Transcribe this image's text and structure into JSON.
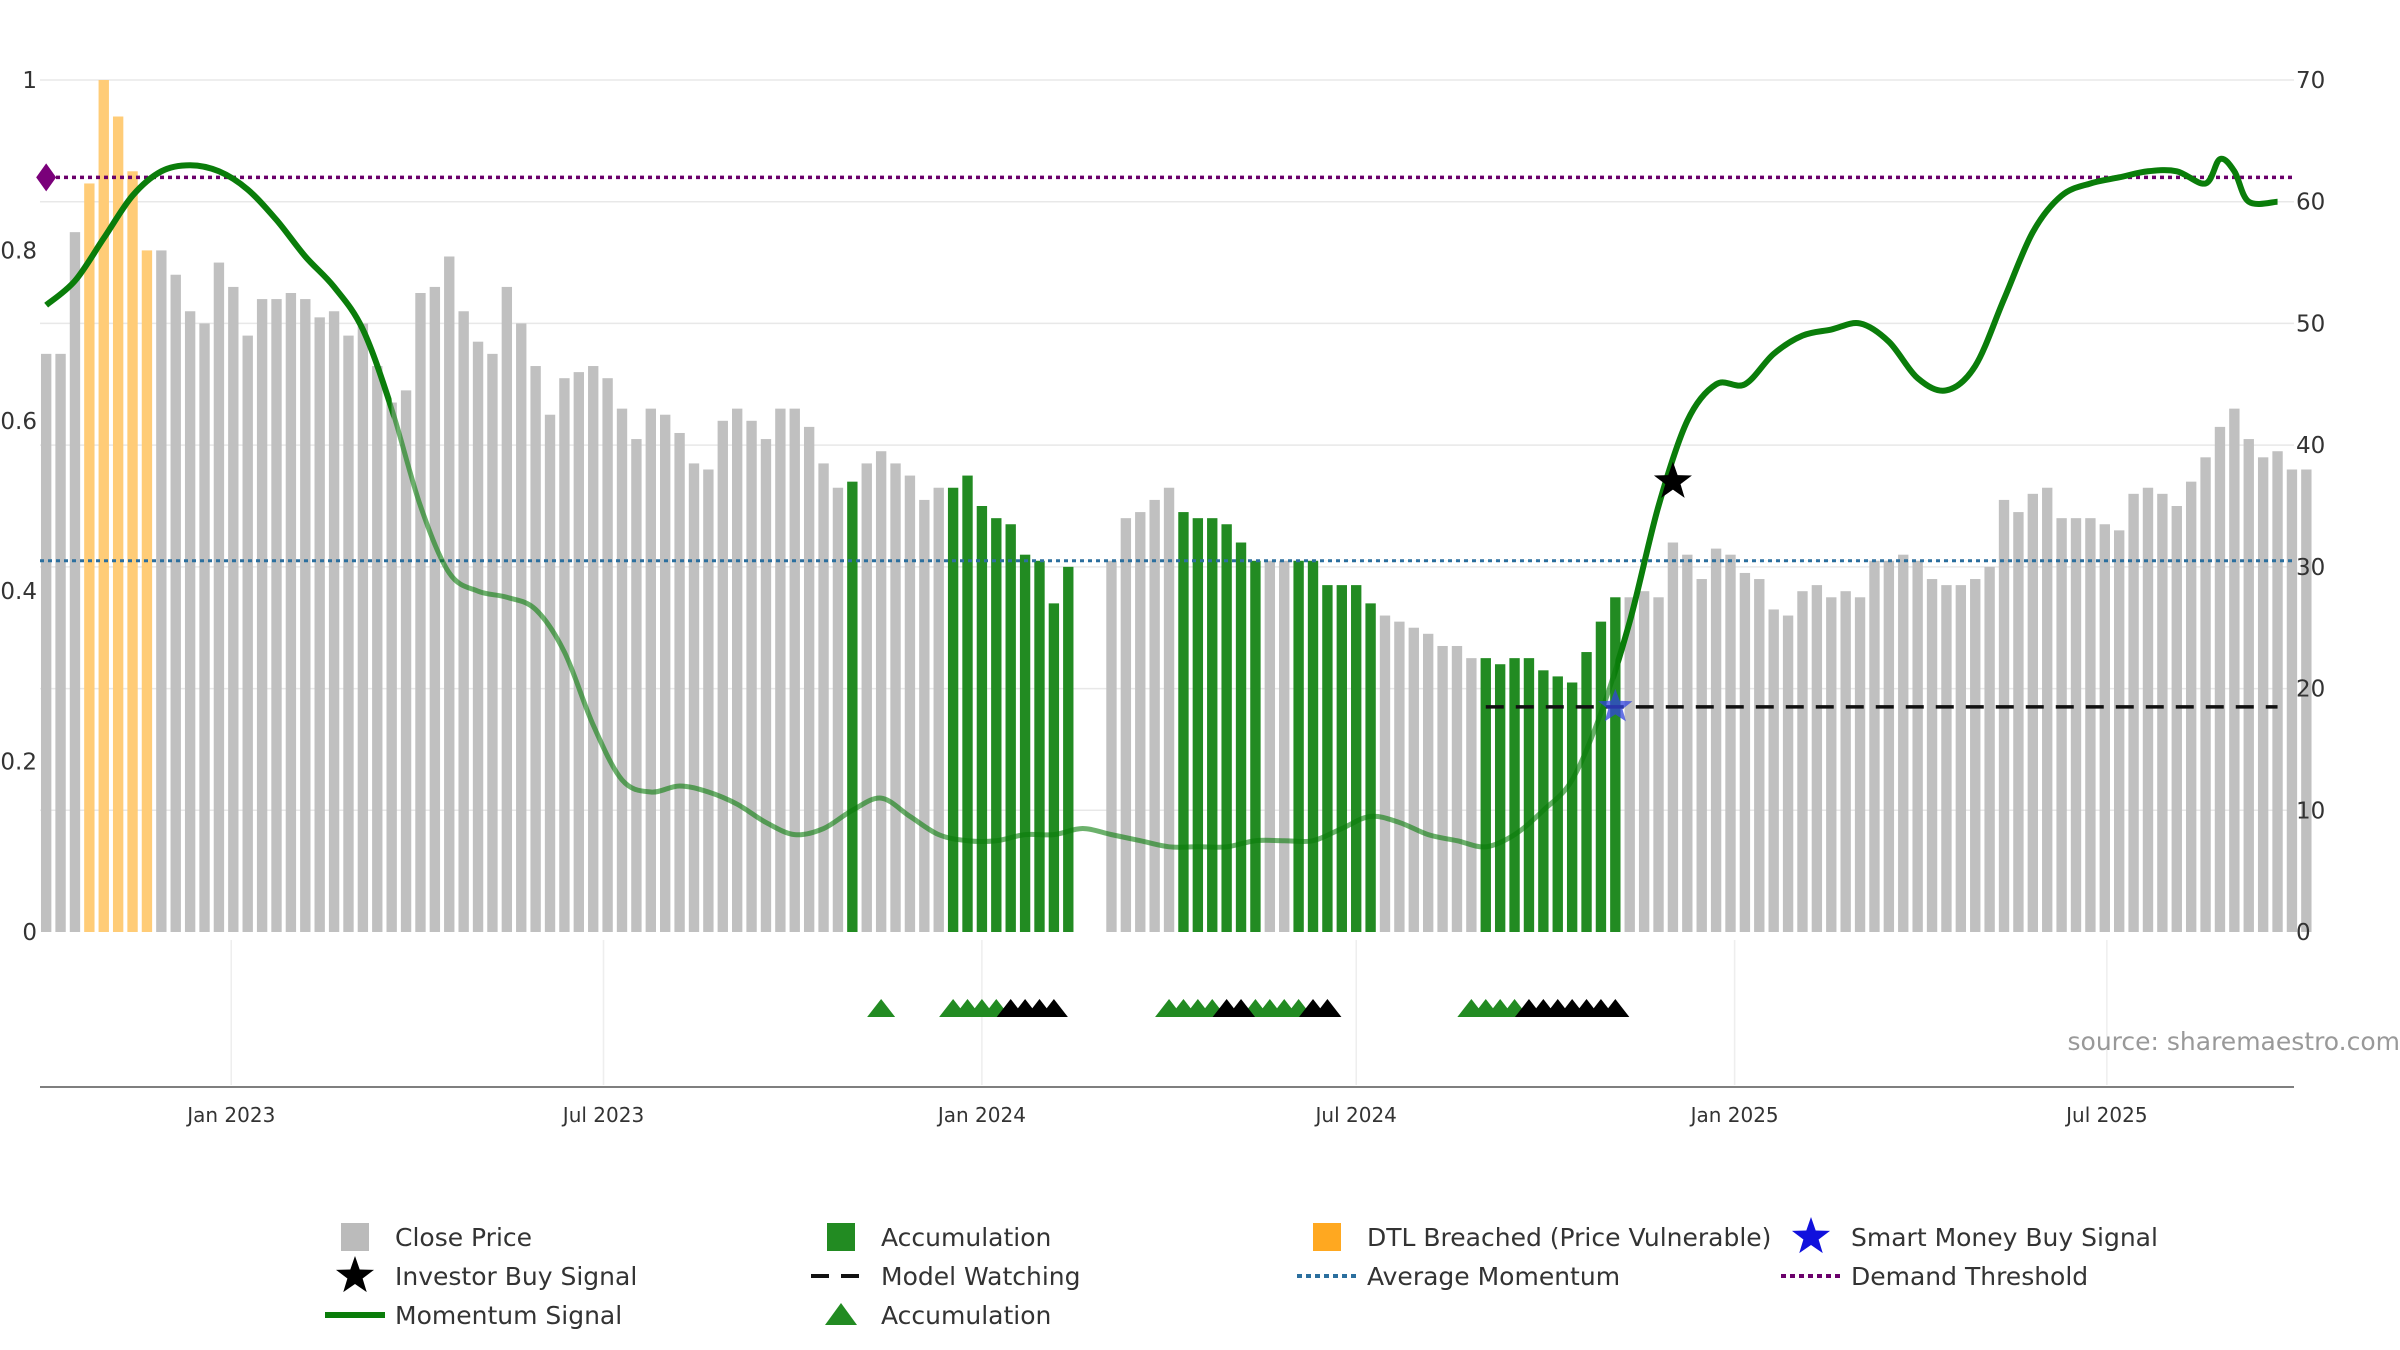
{
  "chart_data": {
    "type": "bar",
    "title": "",
    "source": "source: sharemaestro.com",
    "x_axis": {
      "range": [
        "2022-09-30",
        "2025-09-30"
      ],
      "ticks": [
        {
          "date": "2023-01-01",
          "label": "Jan 2023"
        },
        {
          "date": "2023-07-01",
          "label": "Jul 2023"
        },
        {
          "date": "2024-01-01",
          "label": "Jan 2024"
        },
        {
          "date": "2024-07-01",
          "label": "Jul 2024"
        },
        {
          "date": "2025-01-01",
          "label": "Jan 2025"
        },
        {
          "date": "2025-07-01",
          "label": "Jul 2025"
        }
      ]
    },
    "y_left": {
      "range": [
        0,
        1
      ],
      "ticks": [
        {
          "v": 0,
          "label": "0"
        },
        {
          "v": 0.2,
          "label": "0.2"
        },
        {
          "v": 0.4,
          "label": "0.4"
        },
        {
          "v": 0.6,
          "label": "0.6"
        },
        {
          "v": 0.8,
          "label": "0.8"
        },
        {
          "v": 1,
          "label": "1"
        }
      ]
    },
    "y_right": {
      "range": [
        0,
        70
      ],
      "ticks": [
        {
          "v": 0,
          "label": "0"
        },
        {
          "v": 10,
          "label": "10"
        },
        {
          "v": 20,
          "label": "20"
        },
        {
          "v": 30,
          "label": "30"
        },
        {
          "v": 40,
          "label": "40"
        },
        {
          "v": 50,
          "label": "50"
        },
        {
          "v": 60,
          "label": "60"
        },
        {
          "v": 70,
          "label": "70"
        }
      ]
    },
    "grid": true,
    "colors": {
      "close_price": "#c0c0c0",
      "accumulation": "#228b22",
      "dtl_breached": "#ffcc77",
      "momentum": "#0a7d0a",
      "average_momentum": "#2b6f9e",
      "demand_threshold": "#6b006b",
      "model_watching": "#111111",
      "smart_money": "#3344dd",
      "investor_buy": "#000000"
    },
    "close_price_bars": {
      "start_date": "2022-10-03",
      "interval_days": 7,
      "values": [
        47.5,
        47.5,
        57.5,
        61.5,
        70.0,
        67.0,
        62.5,
        56.0,
        56.0,
        54.0,
        51.0,
        50.0,
        55.0,
        53.0,
        49.0,
        52.0,
        52.0,
        52.5,
        52.0,
        50.5,
        51.0,
        49.0,
        50.0,
        46.5,
        43.5,
        44.5,
        52.5,
        53.0,
        55.5,
        51.0,
        48.5,
        47.5,
        53.0,
        50.0,
        46.5,
        42.5,
        45.5,
        46.0,
        46.5,
        45.5,
        43.0,
        40.5,
        43.0,
        42.5,
        41.0,
        38.5,
        38.0,
        42.0,
        43.0,
        42.0,
        40.5,
        43.0,
        43.0,
        41.5,
        38.5,
        36.5,
        37.0,
        38.5,
        39.5,
        38.5,
        37.5,
        35.5,
        36.5,
        36.5,
        37.5,
        35.0,
        34.0,
        33.5,
        31.0,
        30.5,
        27.0,
        30.0,
        32.5,
        31.0,
        30.5,
        34.0,
        34.5,
        35.5,
        36.5,
        34.5,
        34.0,
        34.0,
        33.5,
        32.0,
        30.5,
        30.5,
        30.5,
        30.5,
        30.5,
        28.5,
        28.5,
        28.5,
        27.0,
        26.0,
        25.5,
        25.0,
        24.5,
        23.5,
        23.5,
        22.5,
        22.5,
        22.0,
        22.5,
        22.5,
        21.5,
        21.0,
        20.5,
        23.0,
        25.5,
        27.5,
        27.5,
        28.0,
        27.5,
        32.0,
        31.0,
        29.0,
        31.5,
        31.0,
        29.5,
        29.0,
        26.5,
        26.0,
        28.0,
        28.5,
        27.5,
        28.0,
        27.5,
        30.5,
        30.5,
        31.0,
        30.5,
        29.0,
        28.5,
        28.5,
        29.0,
        30.0,
        35.5,
        34.5,
        36.0,
        36.5,
        34.0,
        34.0,
        34.0,
        33.5,
        33.0,
        36.0,
        36.5,
        36.0,
        35.0,
        37.0,
        39.0,
        41.5,
        43.0,
        40.5,
        39.0,
        39.5,
        38.0,
        38.0
      ],
      "accumulation_ranges": [
        [
          56,
          56
        ],
        [
          63,
          71
        ],
        [
          79,
          84
        ],
        [
          87,
          92
        ],
        [
          100,
          109
        ]
      ],
      "dtl_breached_range": [
        3,
        7
      ],
      "gap_ranges": [
        [
          72,
          73
        ]
      ]
    },
    "momentum_signal": {
      "note": "",
      "points": [
        [
          "2022-10-03",
          51.5
        ],
        [
          "2022-10-17",
          53.5
        ],
        [
          "2022-10-31",
          57.0
        ],
        [
          "2022-11-14",
          60.5
        ],
        [
          "2022-11-28",
          62.5
        ],
        [
          "2022-12-12",
          63.0
        ],
        [
          "2022-12-26",
          62.5
        ],
        [
          "2023-01-09",
          61.0
        ],
        [
          "2023-01-23",
          58.5
        ],
        [
          "2023-02-06",
          55.5
        ],
        [
          "2023-02-20",
          53.0
        ],
        [
          "2023-03-06",
          49.5
        ],
        [
          "2023-03-20",
          43.0
        ],
        [
          "2023-04-03",
          35.0
        ],
        [
          "2023-04-17",
          29.5
        ],
        [
          "2023-05-01",
          28.0
        ],
        [
          "2023-05-15",
          27.5
        ],
        [
          "2023-05-29",
          26.5
        ],
        [
          "2023-06-12",
          23.0
        ],
        [
          "2023-06-26",
          17.0
        ],
        [
          "2023-07-10",
          12.5
        ],
        [
          "2023-07-24",
          11.5
        ],
        [
          "2023-08-07",
          12.0
        ],
        [
          "2023-08-21",
          11.5
        ],
        [
          "2023-09-04",
          10.5
        ],
        [
          "2023-09-18",
          9.0
        ],
        [
          "2023-10-02",
          8.0
        ],
        [
          "2023-10-16",
          8.5
        ],
        [
          "2023-10-30",
          10.0
        ],
        [
          "2023-11-13",
          11.0
        ],
        [
          "2023-11-27",
          9.5
        ],
        [
          "2023-12-11",
          8.0
        ],
        [
          "2023-12-25",
          7.5
        ],
        [
          "2024-01-08",
          7.5
        ],
        [
          "2024-01-22",
          8.0
        ],
        [
          "2024-02-05",
          8.0
        ],
        [
          "2024-02-19",
          8.5
        ],
        [
          "2024-03-04",
          8.0
        ],
        [
          "2024-03-18",
          7.5
        ],
        [
          "2024-04-01",
          7.0
        ],
        [
          "2024-04-15",
          7.0
        ],
        [
          "2024-04-29",
          7.0
        ],
        [
          "2024-05-13",
          7.5
        ],
        [
          "2024-05-27",
          7.5
        ],
        [
          "2024-06-10",
          7.5
        ],
        [
          "2024-06-24",
          8.5
        ],
        [
          "2024-07-08",
          9.5
        ],
        [
          "2024-07-22",
          9.0
        ],
        [
          "2024-08-05",
          8.0
        ],
        [
          "2024-08-19",
          7.5
        ],
        [
          "2024-09-02",
          7.0
        ],
        [
          "2024-09-16",
          8.0
        ],
        [
          "2024-09-30",
          10.0
        ],
        [
          "2024-10-14",
          12.5
        ],
        [
          "2024-10-28",
          18.0
        ],
        [
          "2024-11-11",
          25.5
        ],
        [
          "2024-11-25",
          35.0
        ],
        [
          "2024-12-09",
          42.0
        ],
        [
          "2024-12-23",
          45.0
        ],
        [
          "2025-01-06",
          45.0
        ],
        [
          "2025-01-20",
          47.5
        ],
        [
          "2025-02-03",
          49.0
        ],
        [
          "2025-02-17",
          49.5
        ],
        [
          "2025-03-03",
          50.0
        ],
        [
          "2025-03-17",
          48.5
        ],
        [
          "2025-03-31",
          45.5
        ],
        [
          "2025-04-14",
          44.5
        ],
        [
          "2025-04-28",
          46.5
        ],
        [
          "2025-05-12",
          52.0
        ],
        [
          "2025-05-26",
          57.5
        ],
        [
          "2025-06-09",
          60.5
        ],
        [
          "2025-06-23",
          61.5
        ],
        [
          "2025-07-07",
          62.0
        ],
        [
          "2025-07-21",
          62.5
        ],
        [
          "2025-08-04",
          62.5
        ],
        [
          "2025-08-18",
          61.5
        ],
        [
          "2025-08-25",
          63.5
        ],
        [
          "2025-09-01",
          62.5
        ],
        [
          "2025-09-08",
          60.0
        ],
        [
          "2025-09-22",
          60.0
        ]
      ],
      "faded_range": [
        "2023-03-20",
        "2024-11-04"
      ]
    },
    "average_momentum": 30.5,
    "demand_threshold": 62.0,
    "demand_marker_date": "2022-10-03",
    "model_watching": {
      "level": 18.5,
      "start": "2024-09-02",
      "end": "2025-09-22"
    },
    "smart_money_signal": {
      "date": "2024-11-04",
      "value": 18.5
    },
    "investor_buy_signal": {
      "date": "2024-12-02",
      "value": 37.0
    },
    "accumulation_markers": {
      "green": [
        "2023-11-13",
        "2023-12-18",
        "2023-12-25",
        "2024-01-01",
        "2024-01-08",
        "2024-04-01",
        "2024-04-08",
        "2024-04-15",
        "2024-04-22",
        "2024-05-13",
        "2024-05-20",
        "2024-05-27",
        "2024-06-03",
        "2024-08-26",
        "2024-09-02",
        "2024-09-09",
        "2024-09-16"
      ],
      "black": [
        "2024-01-15",
        "2024-01-22",
        "2024-01-29",
        "2024-02-05",
        "2024-04-29",
        "2024-05-06",
        "2024-06-10",
        "2024-06-17",
        "2024-09-23",
        "2024-09-30",
        "2024-10-07",
        "2024-10-14",
        "2024-10-21",
        "2024-10-28",
        "2024-11-04"
      ]
    },
    "legend": [
      {
        "label": "Close Price",
        "symbol": "square",
        "color": "#bbbbbb"
      },
      {
        "label": "Accumulation",
        "symbol": "square",
        "color": "#228b22"
      },
      {
        "label": "DTL Breached (Price Vulnerable)",
        "symbol": "square",
        "color": "#ffa820"
      },
      {
        "label": "Smart Money Buy Signal",
        "symbol": "star",
        "color": "#1111dd"
      },
      {
        "label": "Investor Buy Signal",
        "symbol": "star",
        "color": "#000000"
      },
      {
        "label": "Model Watching",
        "symbol": "dash",
        "color": "#111111"
      },
      {
        "label": "Average Momentum",
        "symbol": "dotline",
        "color": "#2b6f9e"
      },
      {
        "label": "Demand Threshold",
        "symbol": "dotline",
        "color": "#6b006b"
      },
      {
        "label": "Momentum Signal",
        "symbol": "line",
        "color": "#0a7d0a"
      },
      {
        "label": "Accumulation",
        "symbol": "triangle",
        "color": "#228b22"
      }
    ]
  }
}
